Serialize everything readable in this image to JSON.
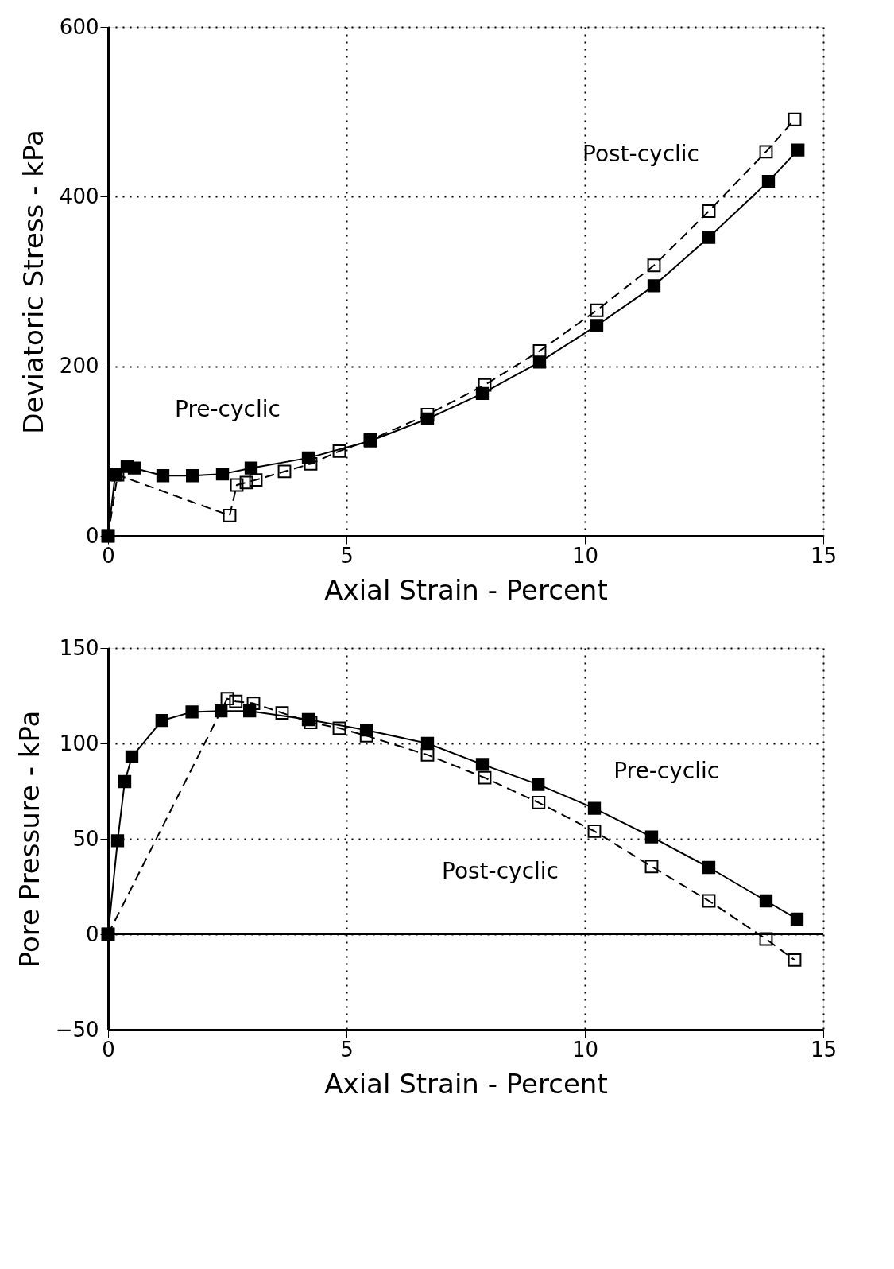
{
  "chart_data": [
    {
      "type": "line",
      "xlabel": "Axial Strain - Percent",
      "ylabel": "Deviatoric Stress - kPa",
      "xlim": [
        0,
        15
      ],
      "ylim": [
        0,
        600
      ],
      "xticks": [
        0,
        5,
        10,
        15
      ],
      "yticks": [
        0,
        200,
        400,
        600
      ],
      "grid": true,
      "marker": "square",
      "series": [
        {
          "name": "Pre-cyclic",
          "color": "#000000",
          "line_style": "solid",
          "x": [
            0,
            0.15,
            0.4,
            0.55,
            1.15,
            1.77,
            2.4,
            3.0,
            4.2,
            5.5,
            6.7,
            7.85,
            9.05,
            10.25,
            11.45,
            12.6,
            13.85,
            14.47
          ],
          "values": [
            0,
            72,
            82,
            80,
            71,
            71,
            73,
            80,
            92,
            112,
            138,
            168,
            205,
            248,
            295,
            352,
            418,
            455
          ]
        },
        {
          "name": "Post-cyclic",
          "color": "#000000",
          "line_style": "dashed",
          "x": [
            0,
            0.2,
            2.55,
            2.7,
            2.9,
            3.1,
            3.7,
            4.25,
            4.85,
            5.5,
            6.7,
            7.9,
            9.05,
            10.25,
            11.45,
            12.6,
            13.8,
            14.4
          ],
          "values": [
            0,
            72,
            24,
            60,
            63,
            66,
            76,
            85,
            100,
            113,
            143,
            178,
            218,
            266,
            319,
            383,
            453,
            491
          ]
        }
      ]
    },
    {
      "type": "line",
      "xlabel": "Axial Strain - Percent",
      "ylabel": "Pore Pressure - kPa",
      "xlim": [
        0,
        15
      ],
      "ylim": [
        -50,
        150
      ],
      "xticks": [
        0,
        5,
        10,
        15
      ],
      "yticks": [
        -50,
        0,
        50,
        100,
        150
      ],
      "grid": true,
      "marker": "square",
      "ref_lines": [
        {
          "axis": "y",
          "value": 0,
          "color": "#000000",
          "line_style": "solid"
        }
      ],
      "series": [
        {
          "name": "Pre-cyclic",
          "color": "#000000",
          "line_style": "solid",
          "x": [
            0,
            0.2,
            0.35,
            0.5,
            1.13,
            1.76,
            2.37,
            2.97,
            4.2,
            5.42,
            6.7,
            7.85,
            9.02,
            10.2,
            11.4,
            12.6,
            13.8,
            14.45
          ],
          "values": [
            0,
            49,
            80,
            93,
            112,
            116.5,
            117,
            117,
            112.5,
            107,
            100,
            89,
            78.5,
            66,
            51,
            35,
            17.5,
            8
          ]
        },
        {
          "name": "Post-cyclic",
          "color": "#000000",
          "line_style": "dashed",
          "x": [
            0,
            2.5,
            2.68,
            3.05,
            3.65,
            4.25,
            4.85,
            5.42,
            6.7,
            7.9,
            9.03,
            10.2,
            11.4,
            12.6,
            13.8,
            14.4
          ],
          "values": [
            0,
            123.5,
            122,
            121,
            116,
            111,
            108,
            104,
            94,
            82,
            69,
            54,
            35.5,
            17.5,
            -2.5,
            -13.5
          ]
        }
      ]
    }
  ]
}
